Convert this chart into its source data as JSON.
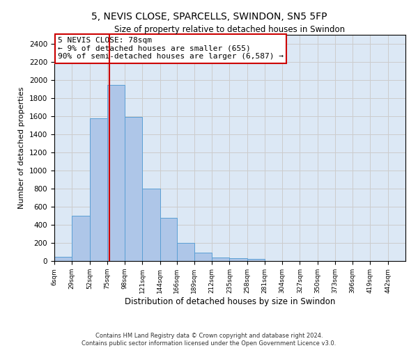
{
  "title": "5, NEVIS CLOSE, SPARCELLS, SWINDON, SN5 5FP",
  "subtitle": "Size of property relative to detached houses in Swindon",
  "xlabel": "Distribution of detached houses by size in Swindon",
  "ylabel": "Number of detached properties",
  "bar_color": "#aec6e8",
  "bar_edge_color": "#5a9fd4",
  "vline_color": "#cc0000",
  "vline_x": 78,
  "annotation_text": "5 NEVIS CLOSE: 78sqm\n← 9% of detached houses are smaller (655)\n90% of semi-detached houses are larger (6,587) →",
  "annotation_box_color": "white",
  "annotation_box_edge_color": "#cc0000",
  "footnote": "Contains HM Land Registry data © Crown copyright and database right 2024.\nContains public sector information licensed under the Open Government Licence v3.0.",
  "bin_edges": [
    6,
    29,
    52,
    75,
    98,
    121,
    144,
    166,
    189,
    212,
    235,
    258,
    281,
    304,
    327,
    350,
    373,
    396,
    419,
    442,
    465
  ],
  "bin_counts": [
    50,
    500,
    1580,
    1950,
    1590,
    800,
    475,
    200,
    90,
    35,
    30,
    20,
    0,
    0,
    0,
    0,
    0,
    0,
    0,
    0
  ],
  "ylim": [
    0,
    2500
  ],
  "yticks": [
    0,
    200,
    400,
    600,
    800,
    1000,
    1200,
    1400,
    1600,
    1800,
    2000,
    2200,
    2400
  ],
  "grid_color": "#cccccc",
  "background_color": "#dce8f5"
}
